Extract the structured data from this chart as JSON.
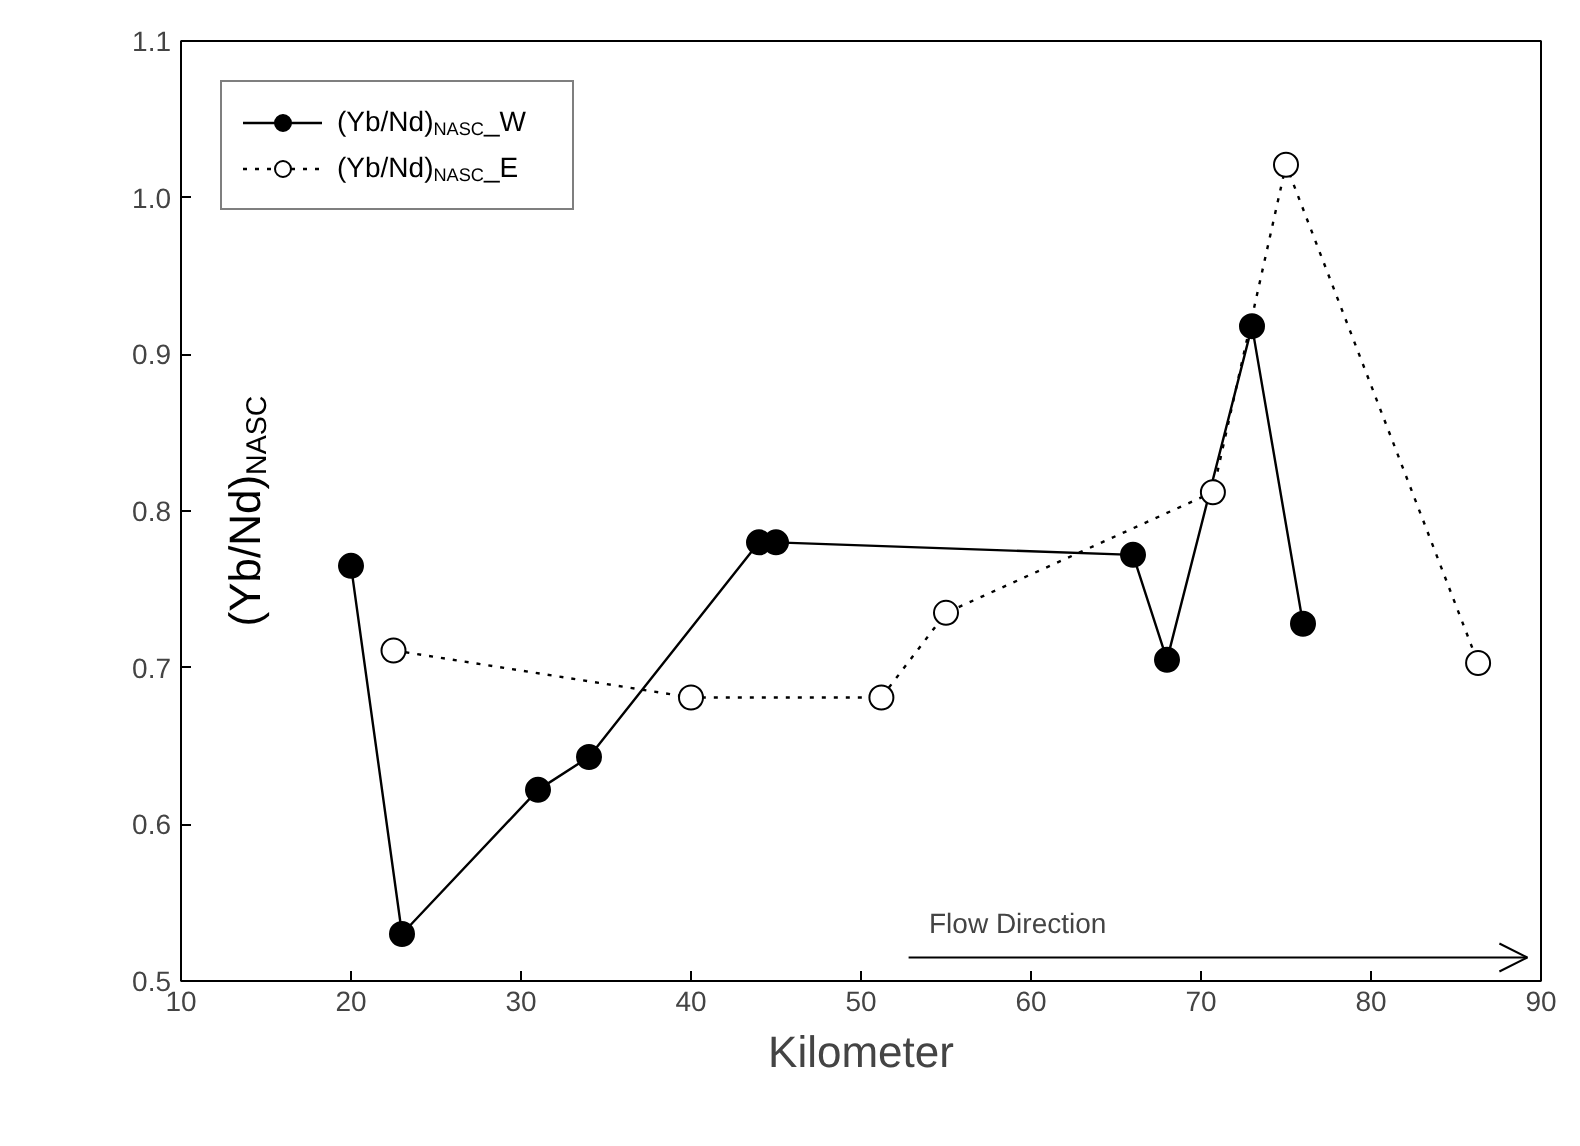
{
  "chart_data": {
    "type": "line",
    "xlabel": "Kilometer",
    "ylabel": "(Yb/Nd)$_{NASC}$",
    "xlim": [
      10,
      90
    ],
    "xticks": [
      10,
      20,
      30,
      40,
      50,
      60,
      70,
      80,
      90
    ],
    "ylim": [
      0.5,
      1.1
    ],
    "yticks": [
      0.5,
      0.6,
      0.7,
      0.8,
      0.9,
      {
        "value": 1,
        "label": "1.0"
      },
      1.1
    ],
    "grid": false,
    "legend": "top left",
    "marker": "circle",
    "series": [
      {
        "name": "(Yb/Nd)$_{NASC}$_W",
        "color": "#000000",
        "line_style": "solid",
        "x": [
          20,
          23,
          31,
          34,
          44,
          45,
          66,
          68,
          73,
          76
        ],
        "values": [
          0.765,
          0.53,
          0.622,
          0.643,
          0.78,
          0.78,
          0.772,
          0.705,
          0.918,
          0.728
        ]
      },
      {
        "name": "(Yb/Nd)$_{NASC}$_E",
        "color": "#000000",
        "line_style": "dotted",
        "x": [
          22.5,
          40,
          51.2,
          55,
          70.7,
          75,
          86.3
        ],
        "values": [
          0.711,
          0.681,
          0.681,
          0.735,
          0.812,
          1.021,
          0.703
        ]
      }
    ],
    "annotations": [
      "Flow Direction"
    ]
  }
}
